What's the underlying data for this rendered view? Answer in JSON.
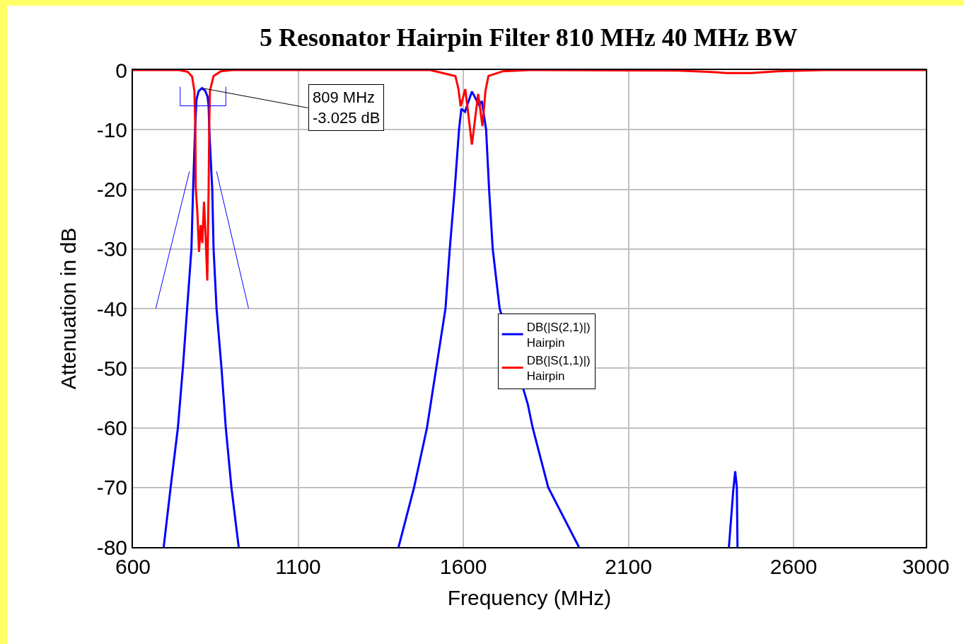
{
  "chart_data": {
    "type": "line",
    "title": "5 Resonator Hairpin Filter 810 MHz 40 MHz BW",
    "xlabel": "Frequency (MHz)",
    "ylabel": "Attenuation in dB",
    "xlim": [
      600,
      3000
    ],
    "xticks": [
      600,
      1100,
      1600,
      2100,
      2600,
      3000
    ],
    "ylim": [
      -80,
      0
    ],
    "yticks": [
      -80,
      -70,
      -60,
      -50,
      -40,
      -30,
      -20,
      -10,
      0
    ],
    "grid": true,
    "legend": "center",
    "marker": "none",
    "line_style": "solid",
    "annotations": [
      {
        "text": "809 MHz\n-3.025 dB",
        "x": 809,
        "y": -3.025
      }
    ],
    "series": [
      {
        "name": "DB(|S(2,1)|)\nHairpin",
        "color": "#0000ff",
        "x": [
          693,
          714,
          736,
          751,
          764,
          777,
          782,
          788,
          792,
          799,
          809,
          819,
          826,
          829,
          831,
          840,
          844,
          853,
          868,
          881,
          898,
          920,
          1100,
          1404,
          1451,
          1490,
          1518,
          1546,
          1559,
          1574,
          1587,
          1594,
          1605,
          1626,
          1648,
          1656,
          1669,
          1678,
          1689,
          1710,
          1795,
          1810,
          1857,
          1950,
          2200,
          2404,
          2417,
          2423,
          2428,
          2430
        ],
        "values": [
          -80,
          -70,
          -60,
          -50,
          -40,
          -30,
          -20,
          -10,
          -5,
          -3.5,
          -3.025,
          -3.5,
          -4.5,
          -6,
          -10,
          -20,
          -30,
          -40,
          -50,
          -60,
          -70,
          -80,
          null,
          -80,
          -70,
          -60,
          -50,
          -40,
          -30,
          -20,
          -10,
          -6.5,
          -7,
          -3.6,
          -5.9,
          -5.2,
          -10,
          -20,
          -30,
          -40,
          -56,
          -60,
          -70,
          -80,
          null,
          -80,
          -70.6,
          -67.3,
          -70,
          -80
        ]
      },
      {
        "name": "DB(|S(1,1)|)\nHairpin",
        "color": "#ff0000",
        "x": [
          600,
          740,
          766,
          779,
          786,
          789,
          790,
          795,
          800,
          805,
          810,
          815,
          820,
          825,
          829,
          831,
          833,
          844,
          866,
          900,
          1500,
          1576,
          1585,
          1592,
          1606,
          1626,
          1645,
          1658,
          1667,
          1676,
          1720,
          1800,
          2250,
          2340,
          2400,
          2470,
          2550,
          2690,
          3000
        ],
        "values": [
          0,
          0,
          -0.3,
          -1.1,
          -3.5,
          -10,
          -19.6,
          -24,
          -30.5,
          -26,
          -29,
          -22.1,
          -28,
          -35.3,
          -20,
          -9,
          -3.5,
          -1,
          -0.2,
          0,
          0,
          -1,
          -3.1,
          -6.1,
          -3.2,
          -12.5,
          -4,
          -9.4,
          -3.5,
          -1,
          -0.2,
          0,
          -0.1,
          -0.3,
          -0.5,
          -0.5,
          -0.2,
          0,
          0
        ]
      },
      {
        "color": "#0000ff",
        "line_style": "solid",
        "x": [
          743,
          743,
          881,
          881
        ],
        "values": [
          -2.8,
          -6,
          -6,
          -2.8
        ]
      },
      {
        "color": "#0000ff",
        "x": [
          669,
          771
        ],
        "values": [
          -40,
          -17
        ]
      },
      {
        "color": "#0000ff",
        "x": [
          853,
          950
        ],
        "values": [
          -17,
          -40
        ]
      }
    ]
  }
}
